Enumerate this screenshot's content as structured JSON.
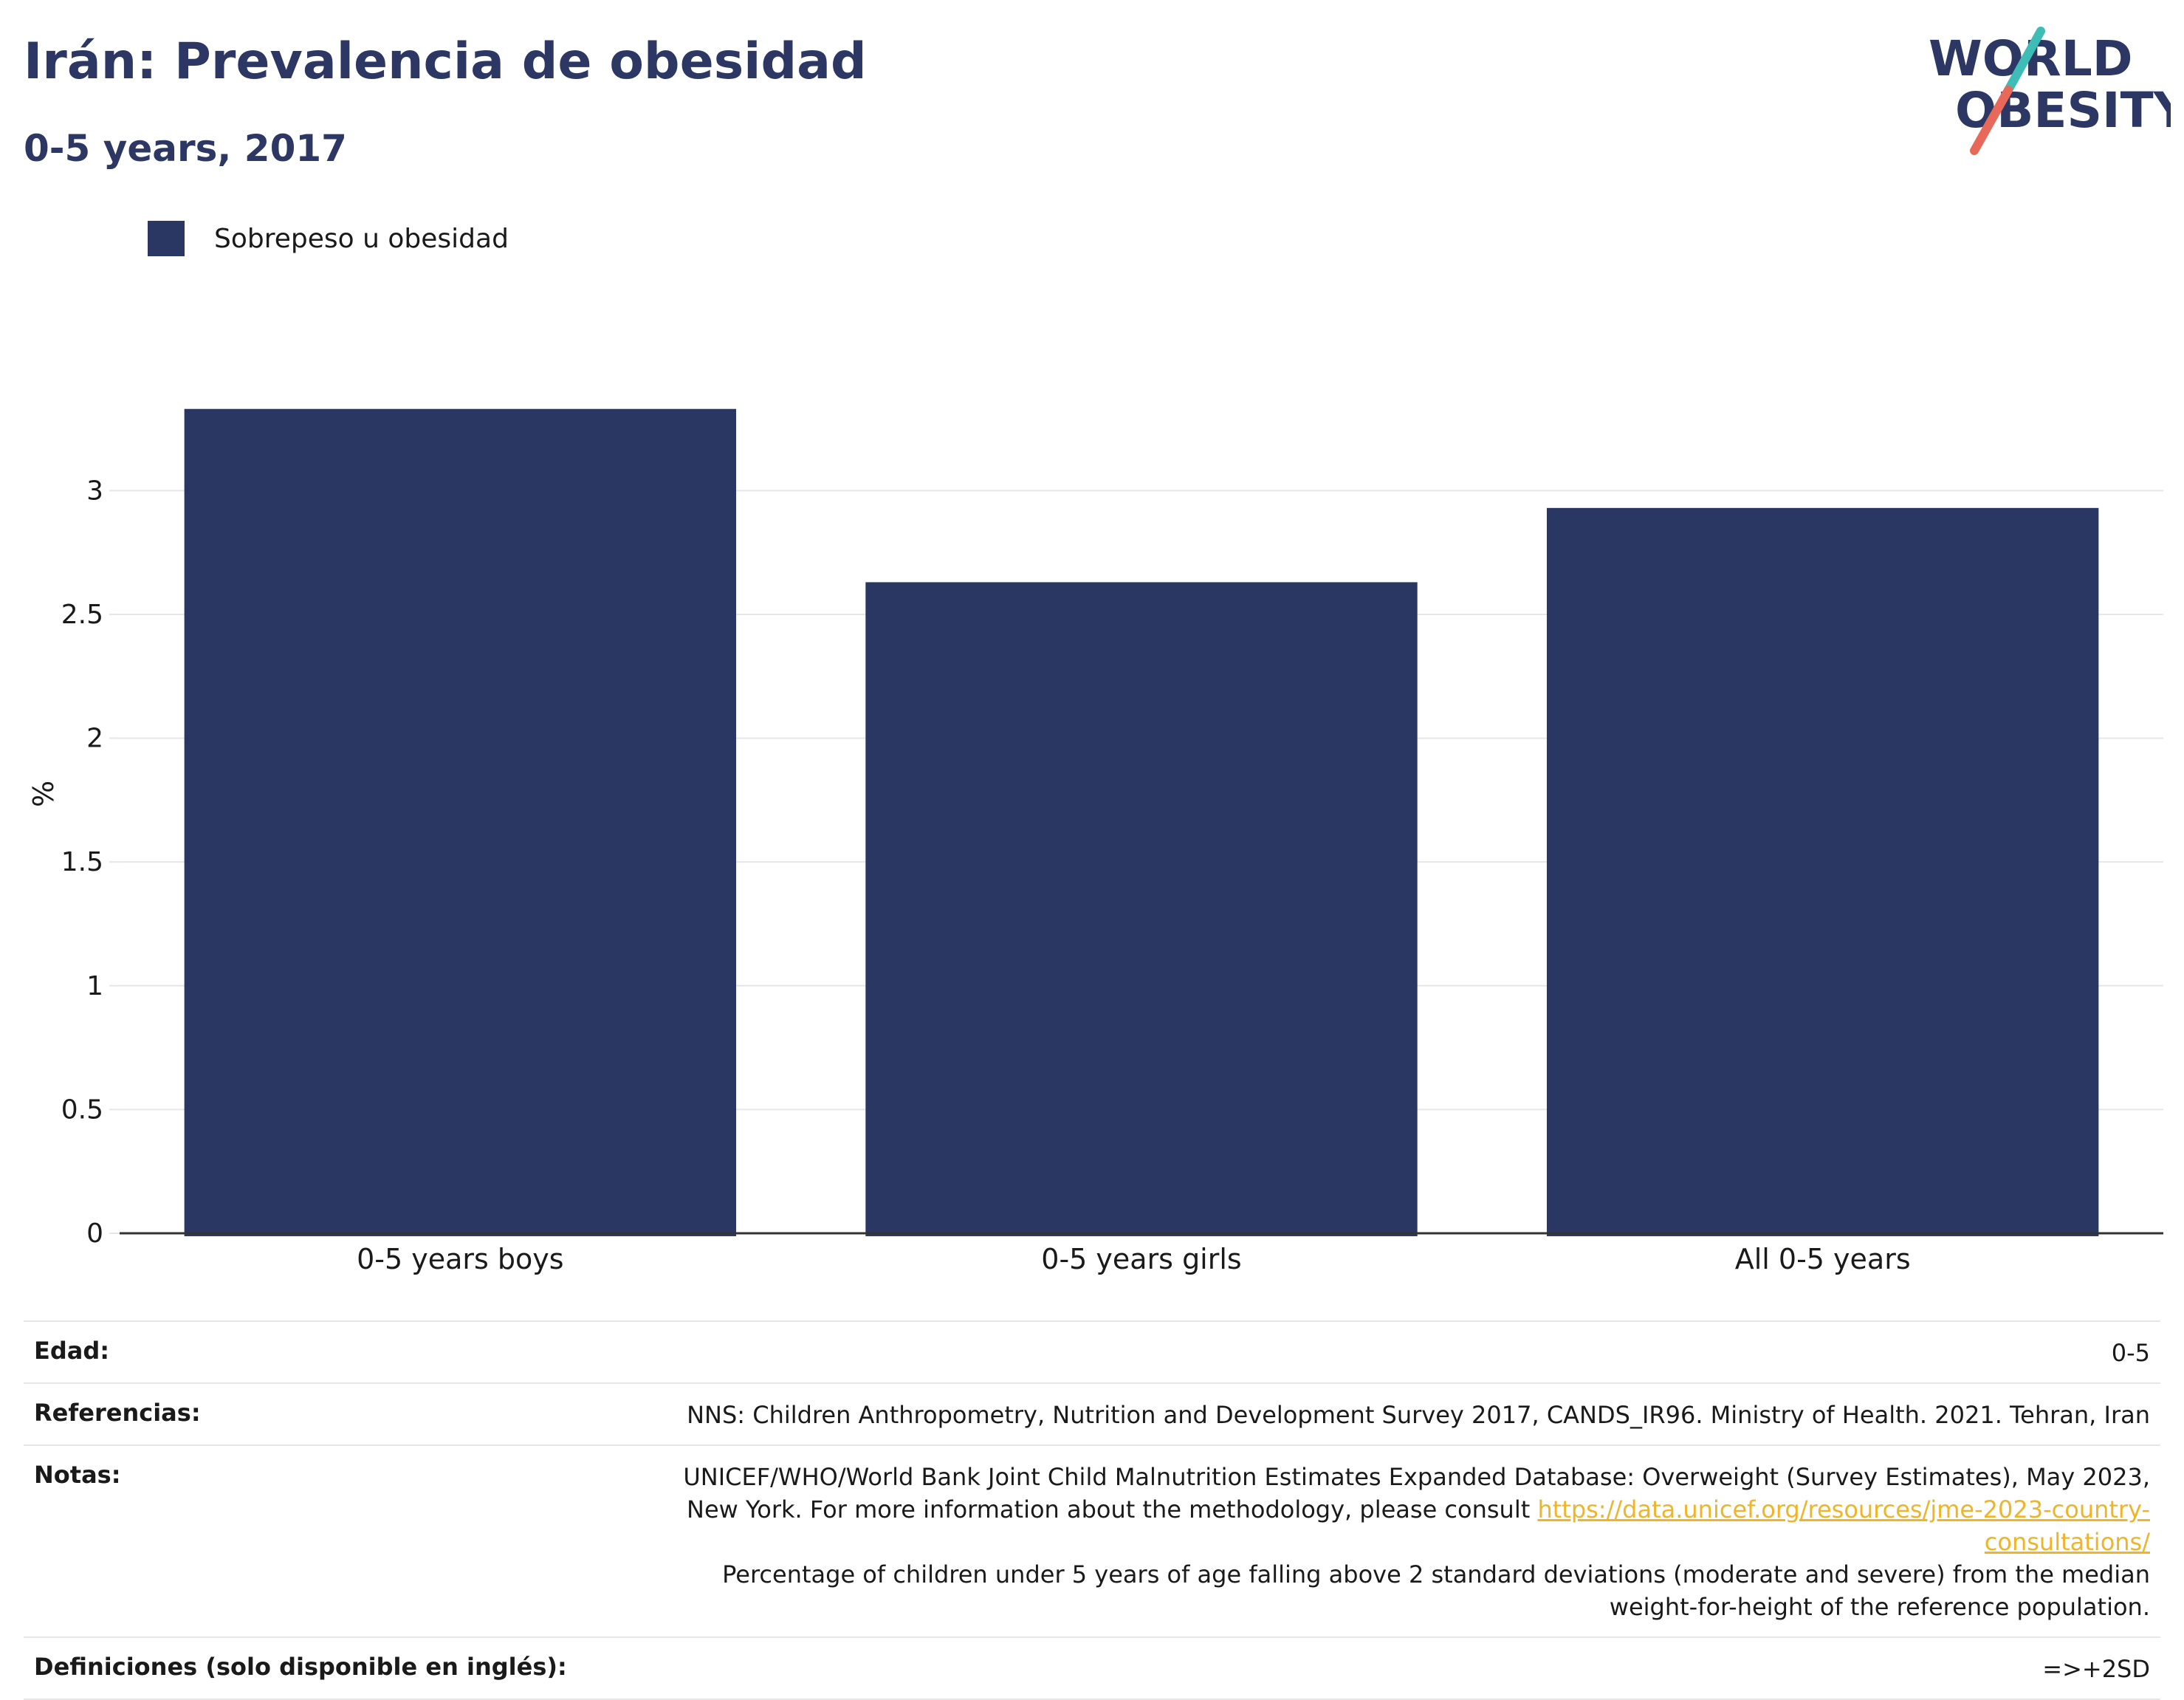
{
  "header": {
    "title": "Irán: Prevalencia de obesidad",
    "subtitle": "0-5 years, 2017"
  },
  "logo": {
    "line1": "WORLD",
    "line2": "OBESITY"
  },
  "colors": {
    "bar": "#2b3763",
    "title": "#2c3863",
    "grid": "#e6e6e6",
    "axis": "#333333",
    "link": "#f0b428",
    "logo_teal": "#3dbdb5",
    "logo_coral": "#e8685a"
  },
  "chart_data": {
    "type": "bar",
    "categories": [
      "0-5 years boys",
      "0-5 years girls",
      "All 0-5 years"
    ],
    "series": [
      {
        "name": "Sobrepeso u obesidad",
        "values": [
          3.33,
          2.63,
          2.93
        ]
      }
    ],
    "ylabel": "%",
    "xlabel": "",
    "ylim": [
      0,
      3.55
    ],
    "yticks": [
      0,
      0.5,
      1,
      1.5,
      2,
      2.5,
      3
    ],
    "ytick_labels": [
      "0",
      "0.5",
      "1",
      "1.5",
      "2",
      "2.5",
      "3"
    ],
    "grid": true,
    "legend_position": "top-left"
  },
  "info": {
    "edad_label": "Edad:",
    "edad_value": "0-5",
    "referencias_label": "Referencias:",
    "referencias_value": "NNS: Children Anthropometry, Nutrition and Development Survey 2017, CANDS_IR96. Ministry of Health. 2021. Tehran, Iran",
    "notas_label": "Notas:",
    "notas_text_1": "UNICEF/WHO/World Bank Joint Child Malnutrition Estimates Expanded Database: Overweight (Survey Estimates), May 2023, New York. For more information about the methodology, please consult ",
    "notas_link": "https://data.unicef.org/resources/jme-2023-country-consultations/",
    "notas_text_2": "Percentage of children under 5 years of age falling above 2 standard deviations (moderate and severe) from the median weight-for-height of the reference population.",
    "definiciones_label": "Definiciones (solo disponible en inglés):",
    "definiciones_value": "=>+2SD"
  }
}
